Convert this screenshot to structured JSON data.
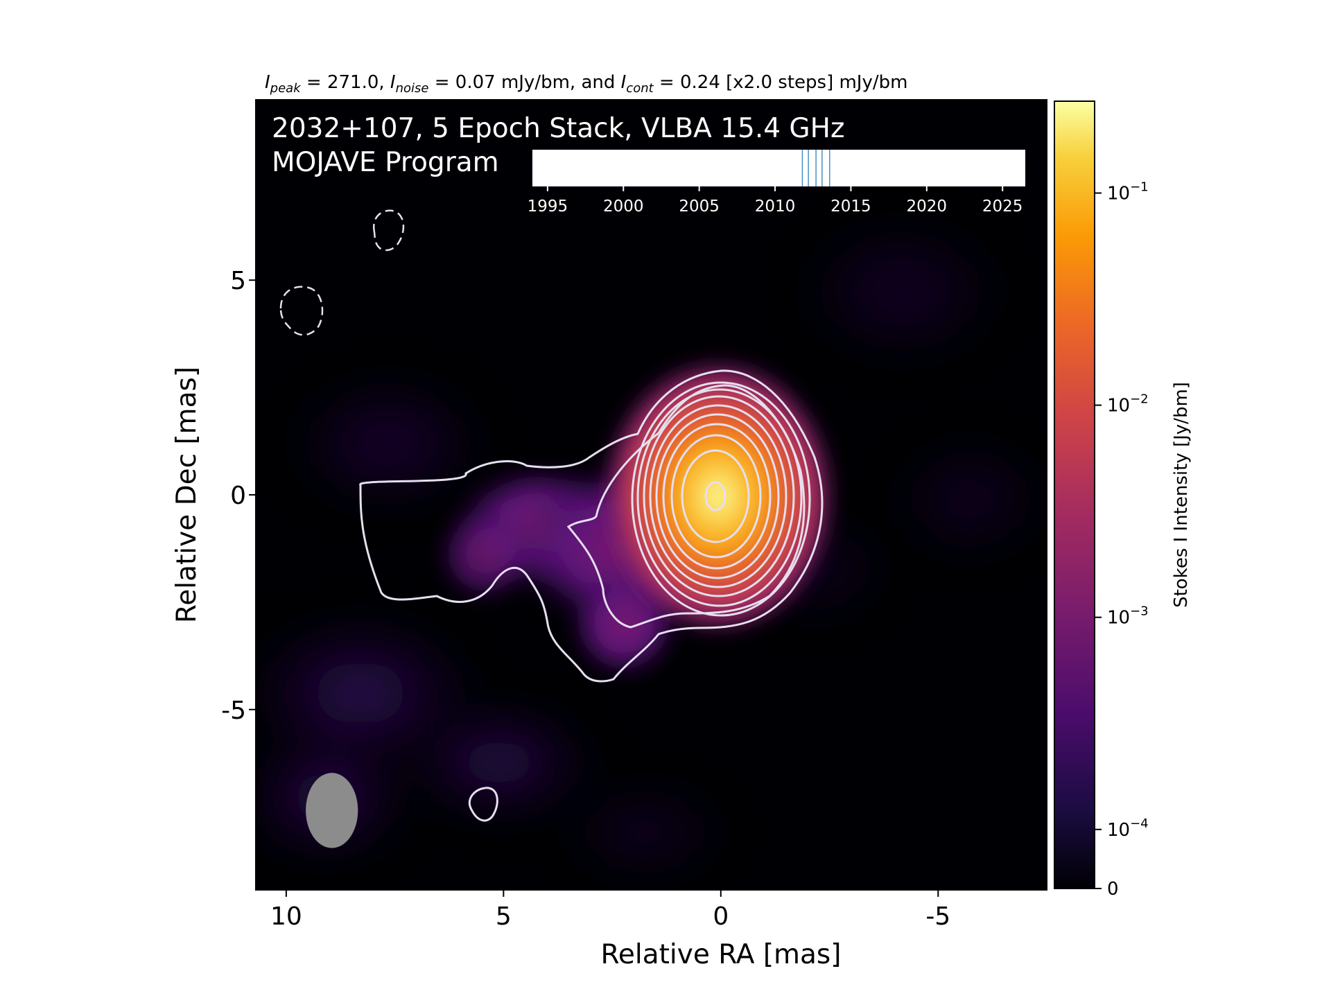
{
  "chart_data": {
    "type": "heatmap",
    "title": "",
    "subtitle": {
      "peak_sym": "I",
      "peak_sub": "peak",
      "peak_val": " = 271.0, ",
      "noise_sym": "I",
      "noise_sub": "noise",
      "noise_val": " = 0.07 mJy/bm, and ",
      "cont_sym": "I",
      "cont_sub": "cont",
      "cont_val": " = 0.24 [x2.0 steps] mJy/bm"
    },
    "image_label_line1": "2032+107, 5 Epoch Stack, VLBA 15.4 GHz",
    "image_label_line2": "MOJAVE Program",
    "xlabel": "Relative RA [mas]",
    "ylabel": "Relative Dec [mas]",
    "xlim": [
      10.7,
      -7.5
    ],
    "ylim": [
      -9.2,
      9.2
    ],
    "x_ticks": [
      10,
      5,
      0,
      -5
    ],
    "x_tick_labels": [
      "10",
      "5",
      "0",
      "-5"
    ],
    "y_ticks": [
      5,
      0,
      -5
    ],
    "y_tick_labels": [
      "5",
      "0",
      "-5"
    ],
    "grid": false,
    "colormap": "inferno",
    "colorbar": {
      "label": "Stokes I Intensity [Jy/bm]",
      "scale": "log",
      "range": [
        0,
        0.271
      ],
      "ticks": [
        {
          "base": "10",
          "exp": "−1",
          "value": 0.1
        },
        {
          "base": "10",
          "exp": "−2",
          "value": 0.01
        },
        {
          "base": "10",
          "exp": "−3",
          "value": 0.001
        },
        {
          "base": "10",
          "exp": "−4",
          "value": 0.0001
        },
        {
          "base": "0",
          "exp": "",
          "value": 0
        }
      ]
    },
    "peak_position": [
      0,
      0
    ],
    "contour_color": "#e6dff0",
    "beam": {
      "center": [
        8.95,
        -7.35
      ],
      "major_mas": 1.75,
      "minor_mas": 1.2,
      "color": "#8c8c8c"
    },
    "epoch_timeline": {
      "range": [
        1994,
        2026.5
      ],
      "ticks": [
        1995,
        2000,
        2005,
        2010,
        2015,
        2020,
        2025
      ],
      "tick_labels": [
        "1995",
        "2000",
        "2005",
        "2010",
        "2015",
        "2020",
        "2025"
      ],
      "epochs": [
        2011.8,
        2012.2,
        2012.7,
        2013.1,
        2013.6
      ],
      "epoch_color": "#4a90c2"
    }
  }
}
